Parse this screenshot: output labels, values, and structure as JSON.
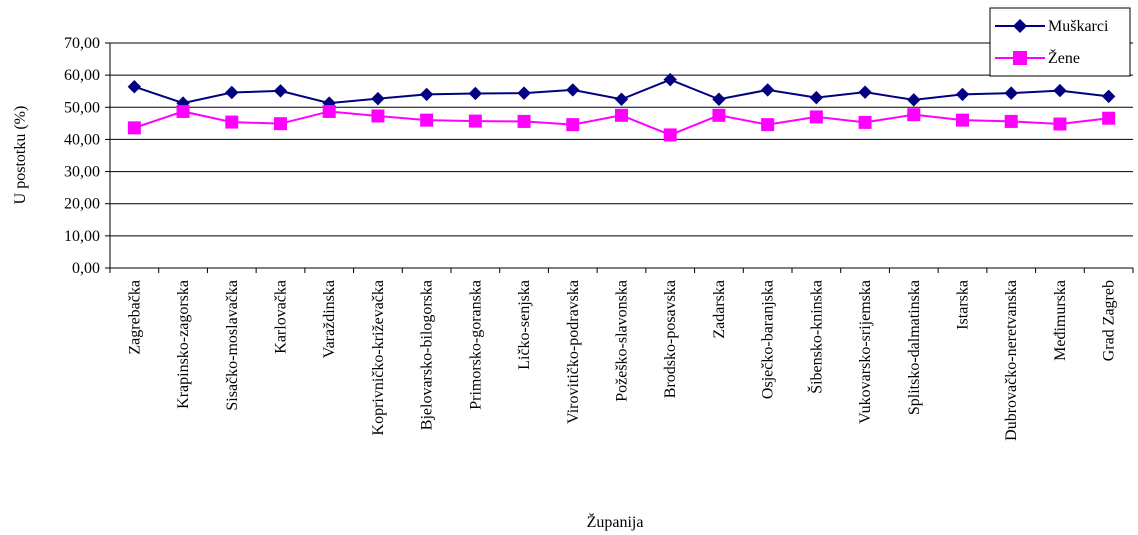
{
  "chart_data": {
    "type": "line",
    "title": "",
    "xlabel": "Županija",
    "ylabel": "U postotku (%)",
    "ylim": [
      0,
      70
    ],
    "yticks": [
      "0,00",
      "10,00",
      "20,00",
      "30,00",
      "40,00",
      "50,00",
      "60,00",
      "70,00"
    ],
    "grid": "horizontal",
    "legend_position": "top-right",
    "categories": [
      "Zagrebačka",
      "Krapinsko-zagorska",
      "Sisačko-moslavačka",
      "Karlovačka",
      "Varaždinska",
      "Koprivničko-križevačka",
      "Bjelovarsko-bilogorska",
      "Primorsko-goranska",
      "Ličko-senjska",
      "Virovitičko-podravska",
      "Požeško-slavonska",
      "Brodsko-posavska",
      "Zadarska",
      "Osječko-baranjska",
      "Šibensko-kninska",
      "Vukovarsko-srijemska",
      "Splitsko-dalmatinska",
      "Istarska",
      "Dubrovačko-neretvanska",
      "Međimurska",
      "Grad Zagreb"
    ],
    "series": [
      {
        "name": "Muškarci",
        "color": "#000080",
        "marker": "diamond",
        "values": [
          56.4,
          51.3,
          54.6,
          55.1,
          51.3,
          52.7,
          54.0,
          54.3,
          54.4,
          55.4,
          52.5,
          58.6,
          52.5,
          55.4,
          53.0,
          54.7,
          52.3,
          54.0,
          54.4,
          55.2,
          53.4
        ]
      },
      {
        "name": "Žene",
        "color": "#ff00ff",
        "marker": "square",
        "values": [
          43.6,
          48.7,
          45.4,
          44.9,
          48.7,
          47.3,
          46.0,
          45.7,
          45.6,
          44.6,
          47.5,
          41.4,
          47.5,
          44.6,
          47.0,
          45.3,
          47.7,
          46.0,
          45.6,
          44.8,
          46.6
        ]
      }
    ]
  }
}
